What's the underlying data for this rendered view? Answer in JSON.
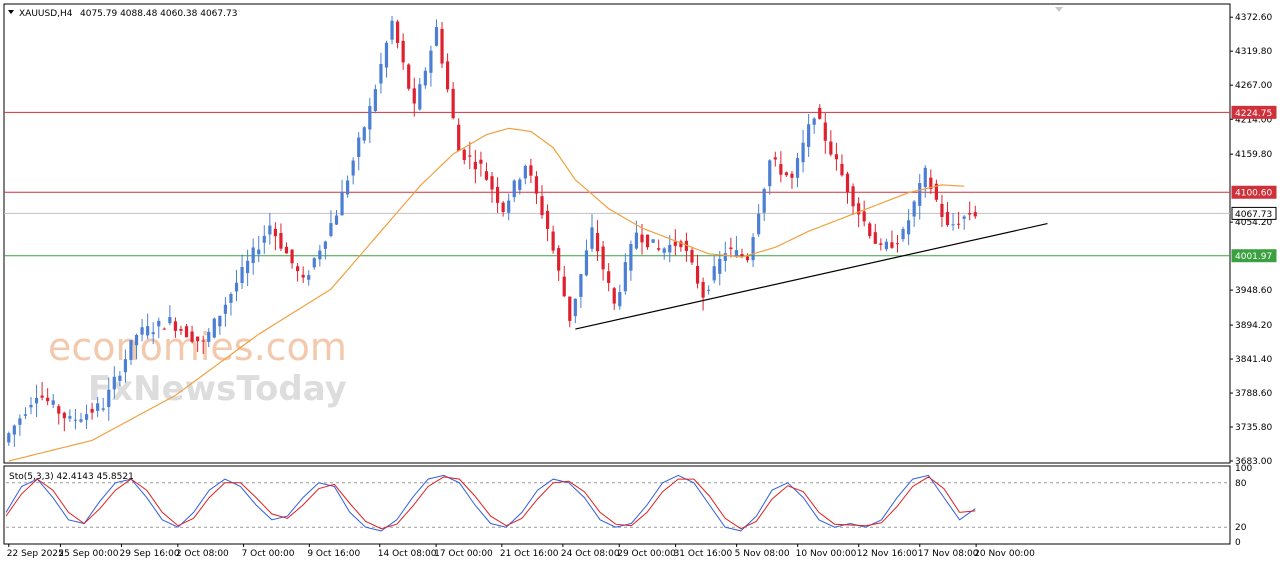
{
  "header": {
    "symbol": "XAUUSD,H4",
    "ohlc": "4075.79 4088.48 4060.38 4067.73"
  },
  "watermark": {
    "line1": "economies.com",
    "line2": "FxNewsToday"
  },
  "colors": {
    "bull": "#4a7fd4",
    "bear": "#e0202e",
    "ma": "#f0a040",
    "resistance": "#d0303a",
    "support": "#3aa040",
    "trendline": "#000000",
    "stoch_main": "#3060e0",
    "stoch_signal": "#e02020"
  },
  "chart_data": [
    {
      "type": "candlestick",
      "symbol": "XAUUSD",
      "timeframe": "H4",
      "ylim": [
        3683.0,
        4390.0
      ],
      "y_ticks": [
        "4372.60",
        "4319.80",
        "4267.00",
        "4214.00",
        "4159.80",
        "4054.20",
        "3948.60",
        "3894.20",
        "3841.40",
        "3788.60",
        "3735.80",
        "3683.00"
      ],
      "x_ticks": [
        "22 Sep 2025",
        "25 Sep 00:00",
        "29 Sep 16:00",
        "2 Oct 08:00",
        "7 Oct 00:00",
        "9 Oct 16:00",
        "14 Oct 08:00",
        "17 Oct 00:00",
        "21 Oct 16:00",
        "24 Oct 08:00",
        "29 Oct 00:00",
        "31 Oct 16:00",
        "5 Nov 08:00",
        "10 Nov 00:00",
        "12 Nov 16:00",
        "17 Nov 08:00",
        "20 Nov 00:00"
      ],
      "price_path": [
        [
          0,
          3712
        ],
        [
          6,
          3790
        ],
        [
          12,
          3745
        ],
        [
          18,
          3770
        ],
        [
          24,
          3880
        ],
        [
          30,
          3900
        ],
        [
          36,
          3865
        ],
        [
          42,
          3960
        ],
        [
          48,
          4050
        ],
        [
          54,
          3960
        ],
        [
          60,
          4070
        ],
        [
          66,
          4230
        ],
        [
          70,
          4365
        ],
        [
          74,
          4230
        ],
        [
          78,
          4355
        ],
        [
          82,
          4165
        ],
        [
          86,
          4140
        ],
        [
          90,
          4075
        ],
        [
          94,
          4145
        ],
        [
          98,
          4045
        ],
        [
          102,
          3905
        ],
        [
          106,
          4040
        ],
        [
          110,
          3925
        ],
        [
          114,
          4040
        ],
        [
          118,
          4010
        ],
        [
          122,
          4025
        ],
        [
          126,
          3942
        ],
        [
          130,
          4010
        ],
        [
          134,
          4000
        ],
        [
          138,
          4150
        ],
        [
          142,
          4120
        ],
        [
          146,
          4225
        ],
        [
          150,
          4145
        ],
        [
          154,
          4070
        ],
        [
          158,
          4010
        ],
        [
          162,
          4035
        ],
        [
          166,
          4130
        ],
        [
          170,
          4045
        ],
        [
          174,
          4068
        ]
      ],
      "ma_path": [
        [
          0,
          3683
        ],
        [
          15,
          3715
        ],
        [
          30,
          3785
        ],
        [
          45,
          3880
        ],
        [
          58,
          3950
        ],
        [
          66,
          4030
        ],
        [
          74,
          4110
        ],
        [
          80,
          4160
        ],
        [
          86,
          4190
        ],
        [
          90,
          4200
        ],
        [
          94,
          4195
        ],
        [
          98,
          4170
        ],
        [
          102,
          4120
        ],
        [
          108,
          4075
        ],
        [
          114,
          4045
        ],
        [
          120,
          4025
        ],
        [
          126,
          4005
        ],
        [
          132,
          4000
        ],
        [
          138,
          4015
        ],
        [
          144,
          4040
        ],
        [
          150,
          4060
        ],
        [
          156,
          4080
        ],
        [
          162,
          4100
        ],
        [
          168,
          4112
        ],
        [
          172,
          4110
        ]
      ],
      "levels": [
        {
          "label": "4224.75",
          "value": 4224.75,
          "kind": "resistance"
        },
        {
          "label": "4100.60",
          "value": 4100.6,
          "kind": "resistance"
        },
        {
          "label": "4067.73",
          "value": 4067.73,
          "kind": "current"
        },
        {
          "label": "4001.97",
          "value": 4001.97,
          "kind": "support"
        }
      ],
      "trendline": {
        "from": [
          102,
          3888
        ],
        "to": [
          187,
          4052
        ]
      }
    },
    {
      "type": "line",
      "title": "Sto(5,3,3) 42.4143 45.8521",
      "ylim": [
        0,
        100
      ],
      "y_ticks": [
        "100",
        "80",
        "20",
        "0"
      ],
      "levels": [
        80,
        20
      ],
      "series": [
        {
          "name": "main",
          "values": [
            40,
            75,
            85,
            60,
            30,
            25,
            55,
            80,
            85,
            60,
            30,
            20,
            40,
            70,
            85,
            75,
            50,
            30,
            35,
            60,
            80,
            75,
            40,
            20,
            15,
            30,
            60,
            85,
            90,
            80,
            50,
            25,
            20,
            40,
            70,
            85,
            80,
            60,
            30,
            20,
            25,
            50,
            80,
            90,
            80,
            50,
            20,
            15,
            35,
            70,
            80,
            60,
            30,
            20,
            25,
            20,
            30,
            60,
            85,
            90,
            60,
            30,
            45
          ]
        },
        {
          "name": "signal",
          "values": [
            35,
            65,
            85,
            70,
            40,
            25,
            45,
            70,
            85,
            70,
            40,
            22,
            32,
            60,
            80,
            80,
            60,
            38,
            32,
            50,
            72,
            78,
            52,
            28,
            18,
            24,
            48,
            75,
            88,
            85,
            62,
            35,
            22,
            32,
            58,
            80,
            82,
            68,
            40,
            24,
            22,
            40,
            68,
            85,
            85,
            62,
            32,
            18,
            28,
            58,
            76,
            68,
            40,
            24,
            23,
            22,
            26,
            48,
            75,
            88,
            72,
            40,
            42
          ]
        }
      ]
    }
  ]
}
